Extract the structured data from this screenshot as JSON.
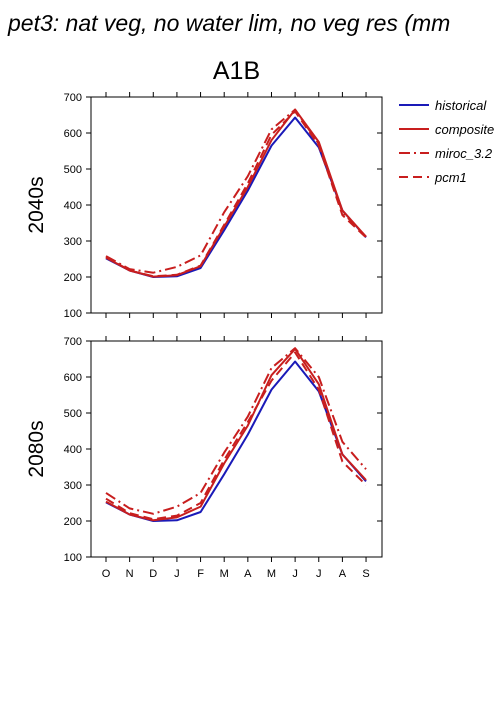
{
  "page": {
    "title": "pet3: nat veg, no water lim, no veg res (mm"
  },
  "colors": {
    "historical": "#1a1ab8",
    "scenario": "#c81e1e"
  },
  "legend": [
    {
      "label": "historical",
      "style": "solid",
      "color": "#1a1ab8"
    },
    {
      "label": "composite",
      "style": "solid",
      "color": "#c81e1e"
    },
    {
      "label": "miroc_3.2",
      "style": "dashdot",
      "color": "#c81e1e"
    },
    {
      "label": "pcm1",
      "style": "dashed",
      "color": "#c81e1e"
    }
  ],
  "chart_data": [
    {
      "type": "line",
      "title": "A1B",
      "ylabel": "2040s",
      "categories": [
        "O",
        "N",
        "D",
        "J",
        "F",
        "M",
        "A",
        "M",
        "J",
        "J",
        "A",
        "S"
      ],
      "yticks": [
        100,
        200,
        300,
        400,
        500,
        600,
        700
      ],
      "ylim": [
        100,
        700
      ],
      "grid": false,
      "series": [
        {
          "name": "historical",
          "style": "solid",
          "values": [
            252,
            218,
            200,
            202,
            225,
            330,
            440,
            565,
            643,
            560,
            385,
            310
          ]
        },
        {
          "name": "composite",
          "style": "solid",
          "values": [
            254,
            218,
            201,
            205,
            230,
            340,
            450,
            580,
            665,
            575,
            385,
            312
          ]
        },
        {
          "name": "miroc_3.2",
          "style": "dashdot",
          "values": [
            258,
            222,
            212,
            228,
            260,
            380,
            480,
            610,
            665,
            570,
            380,
            312
          ]
        },
        {
          "name": "pcm1",
          "style": "dashed",
          "values": [
            256,
            218,
            202,
            206,
            232,
            345,
            460,
            595,
            660,
            565,
            372,
            310
          ]
        }
      ]
    },
    {
      "type": "line",
      "title": "",
      "ylabel": "2080s",
      "categories": [
        "O",
        "N",
        "D",
        "J",
        "F",
        "M",
        "A",
        "M",
        "J",
        "J",
        "A",
        "S"
      ],
      "yticks": [
        100,
        200,
        300,
        400,
        500,
        600,
        700
      ],
      "ylim": [
        100,
        700
      ],
      "grid": false,
      "series": [
        {
          "name": "historical",
          "style": "solid",
          "values": [
            252,
            218,
            200,
            202,
            225,
            330,
            440,
            565,
            643,
            560,
            385,
            310
          ]
        },
        {
          "name": "composite",
          "style": "solid",
          "values": [
            254,
            218,
            202,
            210,
            240,
            360,
            465,
            605,
            678,
            580,
            385,
            314
          ]
        },
        {
          "name": "miroc_3.2",
          "style": "dashdot",
          "values": [
            278,
            235,
            220,
            240,
            278,
            390,
            490,
            625,
            680,
            600,
            420,
            344
          ]
        },
        {
          "name": "pcm1",
          "style": "dashed",
          "values": [
            262,
            222,
            205,
            215,
            250,
            370,
            475,
            590,
            668,
            565,
            365,
            300
          ]
        }
      ]
    }
  ]
}
